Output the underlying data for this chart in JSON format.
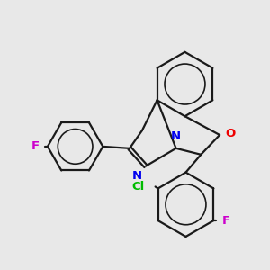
{
  "bg_color": "#e8e8e8",
  "bond_color": "#1a1a1a",
  "N_color": "#0000ee",
  "O_color": "#ee0000",
  "F_color": "#cc00cc",
  "Cl_color": "#00bb00",
  "label_O": "O",
  "label_N": "N",
  "label_N2": "N",
  "label_F_left": "F",
  "label_F_bottom": "F",
  "label_Cl": "Cl",
  "bond_lw": 1.6,
  "font_size": 9.5
}
